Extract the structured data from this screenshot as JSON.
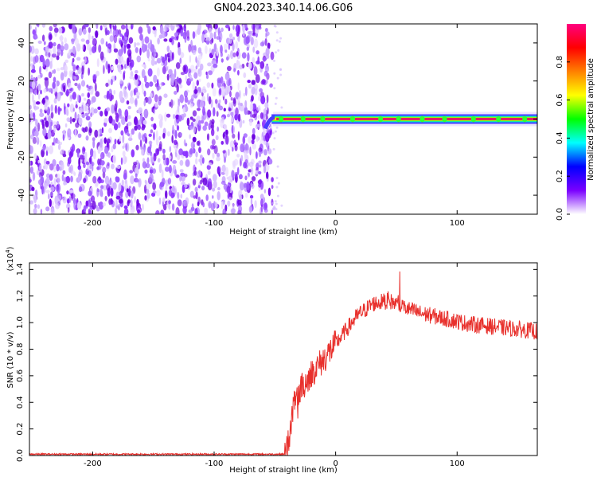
{
  "title": "GN04.2023.340.14.06.G06",
  "colors": {
    "snr_line": "#e8302c",
    "scatter_purple": "#7a10f0",
    "spectral_track": "#e02060",
    "axis": "#000000"
  },
  "chart_data": [
    {
      "type": "heatmap",
      "name": "spectrogram",
      "xlabel": "Height of straight line (km)",
      "ylabel": "Frequency (Hz)",
      "xlim": [
        -252,
        166
      ],
      "ylim": [
        -50,
        50
      ],
      "xticks": [
        -200,
        -100,
        0,
        100
      ],
      "yticks": [
        -40,
        -20,
        0,
        20,
        40
      ],
      "grid": false,
      "noise_region_x": [
        -252,
        -52
      ],
      "signal_track": {
        "x_start": -58,
        "x_end": 166,
        "frequency": 0
      },
      "colorbar": {
        "label": "Normalized spectral amplitude",
        "range": [
          0.0,
          1.0
        ],
        "ticks": [
          0.0,
          0.2,
          0.4,
          0.6,
          0.8
        ],
        "colormap": [
          "#ffffff",
          "#7a00ff",
          "#0000ff",
          "#00ffff",
          "#00ff00",
          "#ffff00",
          "#ff8000",
          "#ff0000",
          "#ff0080"
        ]
      }
    },
    {
      "type": "line",
      "name": "snr",
      "xlabel": "Height of straight line (km)",
      "ylabel": "SNR (10 * v/v)",
      "y_multiplier": "(x10",
      "y_multiplier_exp": "4",
      "y_multiplier_close": ")",
      "xlim": [
        -252,
        166
      ],
      "ylim": [
        0.0,
        1.45
      ],
      "xticks": [
        -200,
        -100,
        0,
        100
      ],
      "yticks": [
        0.0,
        0.2,
        0.4,
        0.6,
        0.8,
        1.0,
        1.2,
        1.4
      ],
      "grid": false,
      "x": [
        -252,
        -200,
        -150,
        -100,
        -60,
        -42,
        -38,
        -35,
        -30,
        -25,
        -20,
        -15,
        -10,
        -5,
        0,
        5,
        10,
        15,
        20,
        25,
        30,
        35,
        40,
        45,
        50,
        55,
        60,
        70,
        80,
        90,
        100,
        110,
        120,
        130,
        140,
        150,
        160,
        166
      ],
      "y": [
        0.01,
        0.01,
        0.01,
        0.01,
        0.01,
        0.01,
        0.15,
        0.35,
        0.48,
        0.55,
        0.62,
        0.67,
        0.72,
        0.78,
        0.84,
        0.9,
        0.96,
        1.02,
        1.07,
        1.1,
        1.14,
        1.15,
        1.16,
        1.16,
        1.14,
        1.12,
        1.1,
        1.07,
        1.05,
        1.03,
        1.01,
        0.99,
        0.98,
        0.97,
        0.96,
        0.95,
        0.94,
        0.93
      ],
      "noise_amplitude": 0.07
    }
  ]
}
